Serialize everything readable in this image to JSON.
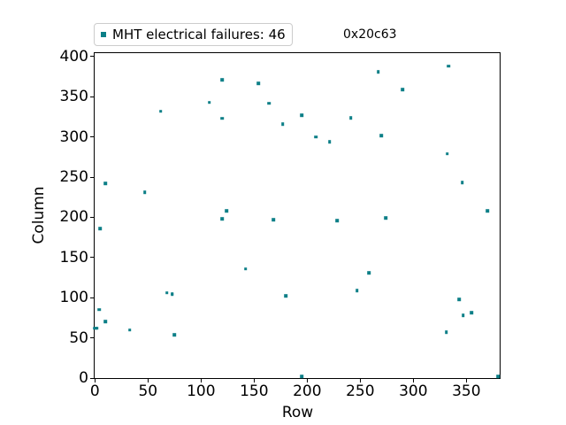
{
  "window": {
    "background": "#ffffff"
  },
  "legend": {
    "label": "MHT electrical failures: 46",
    "marker_color": "#0c7f87",
    "border_color": "#cccccc"
  },
  "annotation": {
    "text": "0x20c63"
  },
  "chart_data": {
    "type": "scatter",
    "title": "",
    "xlabel": "Row",
    "ylabel": "Column",
    "xticks": [
      0,
      50,
      100,
      150,
      200,
      250,
      300,
      350
    ],
    "yticks": [
      0,
      50,
      100,
      150,
      200,
      250,
      300,
      350,
      400
    ],
    "xlim": [
      -0.25,
      381.4
    ],
    "ylim": [
      0,
      404.4
    ],
    "grid": false,
    "legend_position": "outside-top-left",
    "annotation_position": "outside-top-right",
    "marker_shape": "square",
    "marker_color": "#0c7f87",
    "series": [
      {
        "name": "MHT electrical failures",
        "count": 46,
        "color": "#0c7f87",
        "points": [
          [
            0,
            62
          ],
          [
            1,
            62
          ],
          [
            2,
            62
          ],
          [
            4,
            85
          ],
          [
            5,
            186
          ],
          [
            10,
            70
          ],
          [
            10,
            242
          ],
          [
            33,
            60
          ],
          [
            47,
            231
          ],
          [
            62,
            332
          ],
          [
            68,
            106
          ],
          [
            73,
            105
          ],
          [
            73,
            104
          ],
          [
            75,
            54
          ],
          [
            108,
            343
          ],
          [
            120,
            371
          ],
          [
            120,
            323
          ],
          [
            120,
            198
          ],
          [
            124,
            208
          ],
          [
            142,
            136
          ],
          [
            154,
            367
          ],
          [
            164,
            342
          ],
          [
            168,
            197
          ],
          [
            177,
            316
          ],
          [
            180,
            102
          ],
          [
            195,
            327
          ],
          [
            195,
            2
          ],
          [
            208,
            300
          ],
          [
            221,
            294
          ],
          [
            228,
            196
          ],
          [
            241,
            324
          ],
          [
            247,
            109
          ],
          [
            258,
            131
          ],
          [
            267,
            381
          ],
          [
            270,
            302
          ],
          [
            274,
            199
          ],
          [
            290,
            359
          ],
          [
            331,
            57
          ],
          [
            332,
            279
          ],
          [
            333,
            388
          ],
          [
            343,
            98
          ],
          [
            346,
            243
          ],
          [
            347,
            78
          ],
          [
            355,
            81
          ],
          [
            370,
            208
          ],
          [
            380,
            2
          ]
        ]
      }
    ]
  }
}
